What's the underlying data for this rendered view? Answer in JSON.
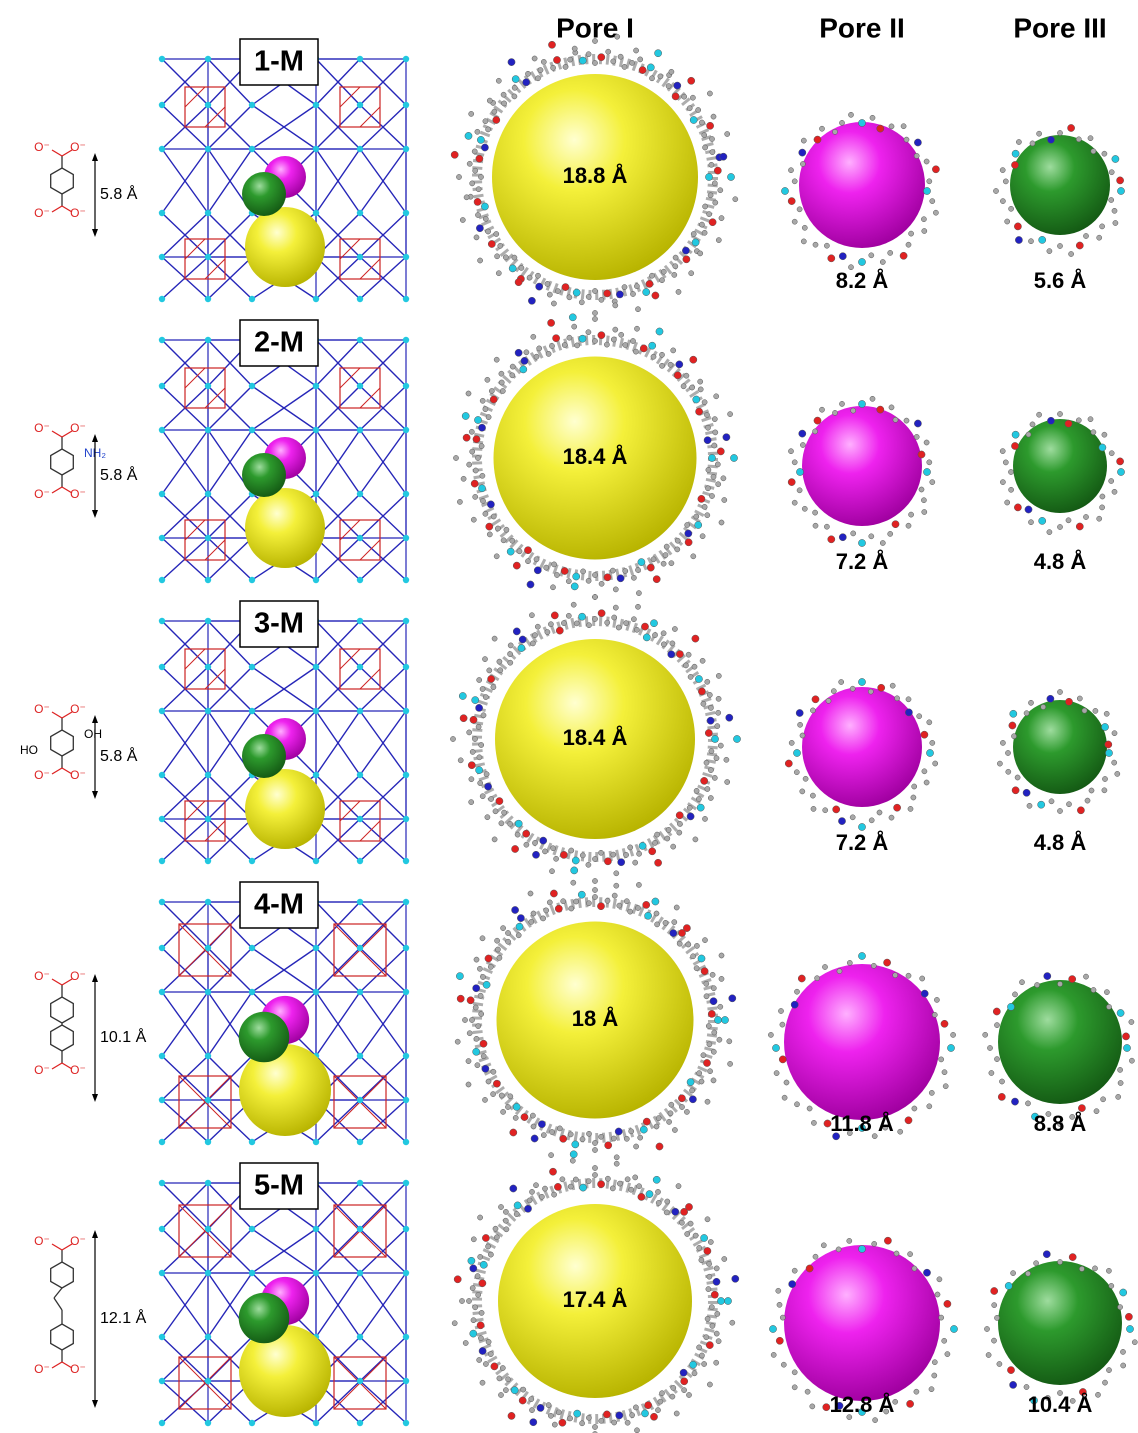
{
  "columns": [
    "Pore I",
    "Pore II",
    "Pore III"
  ],
  "carboxylate_oxygen": "O⁻",
  "rows": [
    {
      "label": "1-M",
      "ligand_length": "5.8 Å",
      "pore_1": "18.8 Å",
      "pore_2": "8.2 Å",
      "pore_3": "5.6 Å"
    },
    {
      "label": "2-M",
      "ligand_length": "5.8 Å",
      "substituents": [
        "NH₂"
      ],
      "pore_1": "18.4 Å",
      "pore_2": "7.2 Å",
      "pore_3": "4.8 Å"
    },
    {
      "label": "3-M",
      "ligand_length": "5.8 Å",
      "substituents": [
        "OH",
        "HO"
      ],
      "pore_1": "18.4 Å",
      "pore_2": "7.2 Å",
      "pore_3": "4.8 Å"
    },
    {
      "label": "4-M",
      "ligand_length": "10.1 Å",
      "pore_1": "18 Å",
      "pore_2": "11.8 Å",
      "pore_3": "8.8 Å"
    },
    {
      "label": "5-M",
      "ligand_length": "12.1 Å",
      "pore_1": "17.4 Å",
      "pore_2": "12.8 Å",
      "pore_3": "10.4 Å"
    }
  ]
}
